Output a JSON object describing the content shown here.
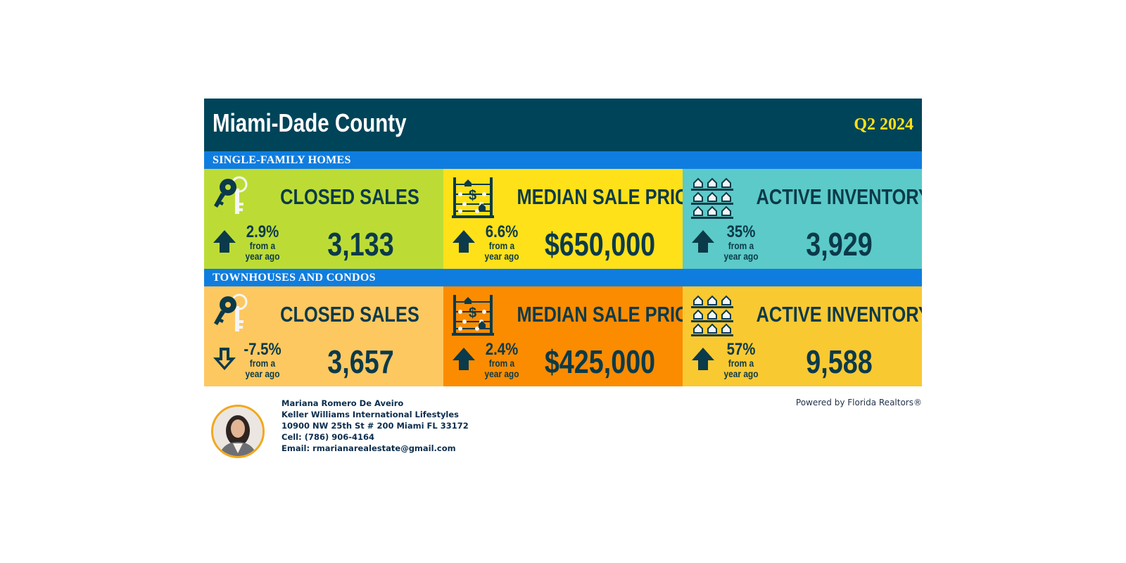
{
  "header": {
    "title": "Miami-Dade County",
    "period": "Q2 2024"
  },
  "sections": [
    {
      "label": "SINGLE-FAMILY HOMES",
      "metrics": [
        {
          "label": "CLOSED SALES",
          "icon": "key-icon",
          "bg": "#bcdc35",
          "trend": "up",
          "change": "2.9%",
          "sub1": "from a",
          "sub2": "year ago",
          "value": "3,133"
        },
        {
          "label": "MEDIAN SALE PRICE",
          "icon": "abacus-icon",
          "bg": "#ffe119",
          "trend": "up",
          "change": "6.6%",
          "sub1": "from a",
          "sub2": "year ago",
          "value": "$650,000"
        },
        {
          "label": "ACTIVE INVENTORY",
          "icon": "houses-icon",
          "bg": "#5ccac8",
          "trend": "up",
          "change": "35%",
          "sub1": "from a",
          "sub2": "year ago",
          "value": "3,929"
        }
      ]
    },
    {
      "label": "TOWNHOUSES AND CONDOS",
      "metrics": [
        {
          "label": "CLOSED SALES",
          "icon": "key-icon",
          "bg": "#fdc860",
          "trend": "down",
          "change": "-7.5%",
          "sub1": "from a",
          "sub2": "year ago",
          "value": "3,657"
        },
        {
          "label": "MEDIAN SALE PRICE",
          "icon": "abacus-icon",
          "bg": "#fb8c00",
          "trend": "up",
          "change": "2.4%",
          "sub1": "from a",
          "sub2": "year ago",
          "value": "$425,000"
        },
        {
          "label": "ACTIVE INVENTORY",
          "icon": "houses-icon",
          "bg": "#f9c932",
          "trend": "up",
          "change": "57%",
          "sub1": "from a",
          "sub2": "year ago",
          "value": "9,588"
        }
      ]
    }
  ],
  "agent": {
    "name": "Mariana Romero De Aveiro",
    "company": "Keller Williams International Lifestyles",
    "address": "10900 NW 25th St # 200 Miami FL 33172",
    "cell": "Cell: (786) 906-4164",
    "email": "Email: rmarianarealestate@gmail.com"
  },
  "powered_by": "Powered by Florida Realtors®",
  "colors": {
    "dark": "#004459",
    "accent_yellow": "#ffe119",
    "section_blue": "#0f7ddf",
    "text_dark": "#0b3a4a"
  }
}
